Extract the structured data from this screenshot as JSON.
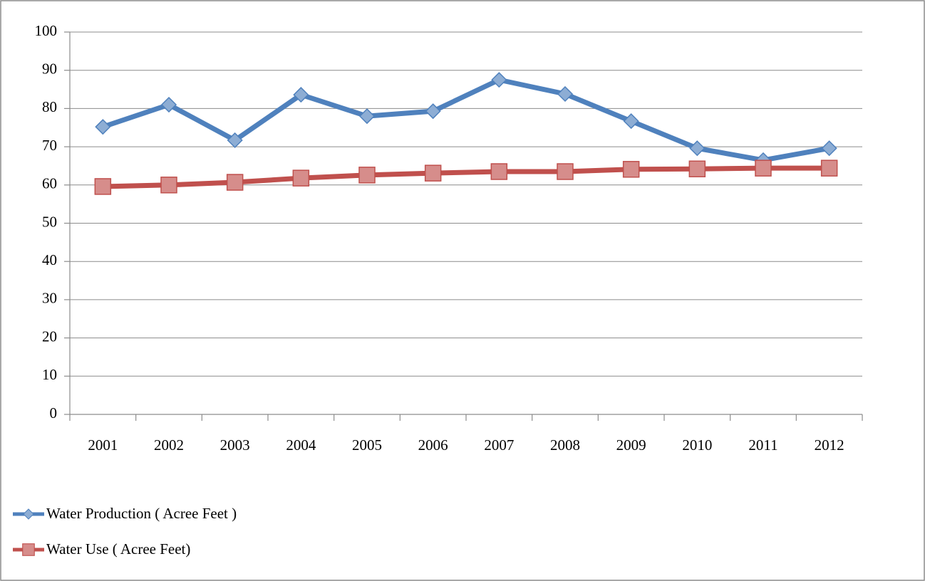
{
  "chart_data": {
    "type": "line",
    "categories": [
      "2001",
      "2002",
      "2003",
      "2004",
      "2005",
      "2006",
      "2007",
      "2008",
      "2009",
      "2010",
      "2011",
      "2012"
    ],
    "series": [
      {
        "name": "Water Production ( Acree Feet )",
        "color": "#4f81bd",
        "marker": "diamond",
        "values": [
          75.2,
          81,
          71.7,
          83.6,
          78,
          79.3,
          87.5,
          83.8,
          76.7,
          69.6,
          66.5,
          69.6
        ]
      },
      {
        "name": "Water Use ( Acree Feet)",
        "color": "#c0504d",
        "marker": "square",
        "values": [
          59.6,
          60,
          60.7,
          61.8,
          62.6,
          63.1,
          63.5,
          63.5,
          64.1,
          64.2,
          64.4,
          64.4
        ]
      }
    ],
    "ylim": [
      0,
      100
    ],
    "yticks": [
      0,
      10,
      20,
      30,
      40,
      50,
      60,
      70,
      80,
      90,
      100
    ],
    "grid": true
  }
}
